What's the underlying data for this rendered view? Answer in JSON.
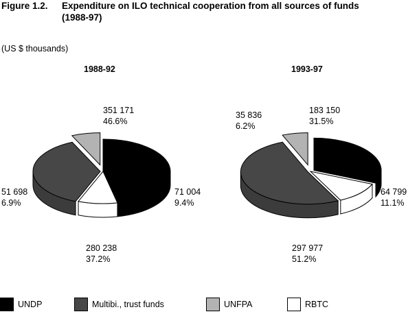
{
  "figure": {
    "number": "Figure 1.2.",
    "title_line1": "Expenditure on ILO technical cooperation from all sources of funds",
    "title_line2": "(1988-97)",
    "units": "(US $ thousands)"
  },
  "colors": {
    "UNDP": "#000000",
    "Multibi": "#474747",
    "UNFPA": "#b3b3b3",
    "RBTC": "#ffffff",
    "outline": "#000000"
  },
  "legend": [
    {
      "key": "UNDP",
      "label": "UNDP"
    },
    {
      "key": "Multibi",
      "label": "Multibi., trust funds"
    },
    {
      "key": "UNFPA",
      "label": "UNFPA"
    },
    {
      "key": "RBTC",
      "label": "RBTC"
    }
  ],
  "chart_data": [
    {
      "type": "pie",
      "title": "1988-92",
      "slices": [
        {
          "key": "UNDP",
          "name": "UNDP",
          "value": 351171,
          "value_label": "351 171",
          "percent": 46.6,
          "percent_label": "46.6%"
        },
        {
          "key": "RBTC",
          "name": "RBTC",
          "value": 71004,
          "value_label": "71 004",
          "percent": 9.4,
          "percent_label": "9.4%"
        },
        {
          "key": "Multibi",
          "name": "Multibi., trust funds",
          "value": 280238,
          "value_label": "280 238",
          "percent": 37.2,
          "percent_label": "37.2%"
        },
        {
          "key": "UNFPA",
          "name": "UNFPA",
          "value": 51698,
          "value_label": "51 698",
          "percent": 6.9,
          "percent_label": "6.9%"
        }
      ]
    },
    {
      "type": "pie",
      "title": "1993-97",
      "slices": [
        {
          "key": "UNDP",
          "name": "UNDP",
          "value": 183150,
          "value_label": "183 150",
          "percent": 31.5,
          "percent_label": "31.5%"
        },
        {
          "key": "RBTC",
          "name": "RBTC",
          "value": 64799,
          "value_label": "64 799",
          "percent": 11.1,
          "percent_label": "11.1%"
        },
        {
          "key": "Multibi",
          "name": "Multibi., trust funds",
          "value": 297977,
          "value_label": "297 977",
          "percent": 51.2,
          "percent_label": "51.2%"
        },
        {
          "key": "UNFPA",
          "name": "UNFPA",
          "value": 35836,
          "value_label": "35 836",
          "percent": 6.2,
          "percent_label": "6.2%"
        }
      ]
    }
  ]
}
